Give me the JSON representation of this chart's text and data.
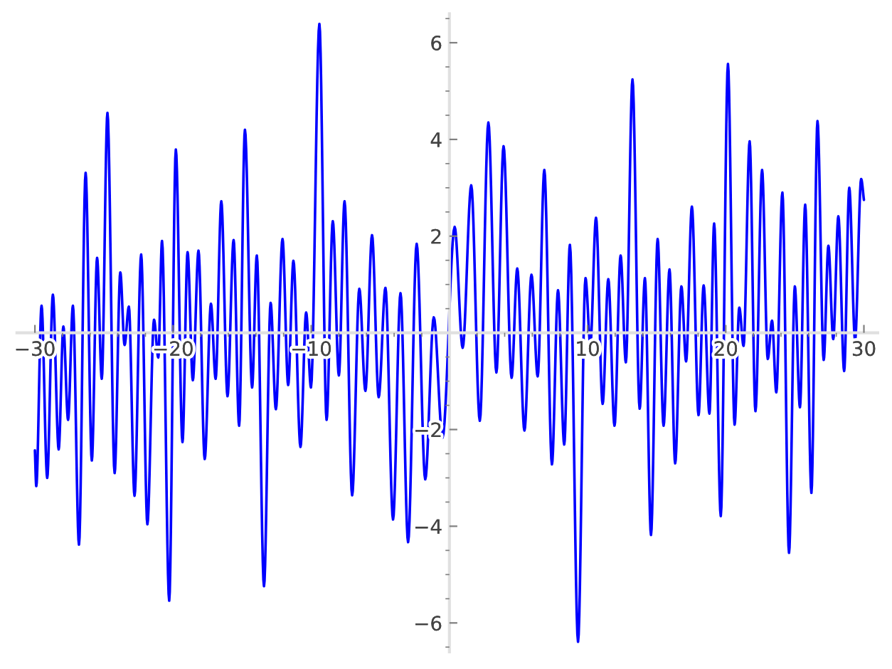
{
  "chart_data": {
    "type": "line",
    "x": [
      -30.0,
      -29.9,
      -29.52,
      -29.11,
      -28.7,
      -28.28,
      -27.94,
      -27.6,
      -27.25,
      -26.81,
      -26.33,
      -25.88,
      -25.5,
      -25.16,
      -24.75,
      -24.23,
      -23.82,
      -23.51,
      -23.2,
      -22.79,
      -22.31,
      -21.86,
      -21.38,
      -21.07,
      -20.8,
      -20.28,
      -19.8,
      -19.32,
      -18.95,
      -18.57,
      -18.16,
      -17.71,
      -17.26,
      -16.92,
      -16.51,
      -16.06,
      -15.62,
      -15.22,
      -14.8,
      -14.28,
      -13.94,
      -13.42,
      -12.94,
      -12.56,
      -12.08,
      -11.67,
      -11.29,
      -10.78,
      -10.37,
      -10.02,
      -9.41,
      -8.89,
      -8.44,
      -8.0,
      -7.59,
      -7.04,
      -6.52,
      -6.08,
      -5.6,
      -5.12,
      -4.63,
      -4.08,
      -3.54,
      -2.99,
      -2.37,
      -1.75,
      -1.13,
      -0.5,
      0.38,
      0.96,
      1.58,
      2.2,
      2.82,
      3.4,
      3.92,
      4.5,
      4.91,
      5.43,
      5.94,
      6.39,
      6.87,
      7.42,
      7.86,
      8.31,
      8.72,
      9.31,
      9.85,
      10.2,
      10.61,
      11.09,
      11.5,
      11.95,
      12.39,
      12.77,
      13.25,
      13.77,
      14.15,
      14.59,
      15.07,
      15.5,
      15.93,
      16.34,
      16.79,
      17.13,
      17.55,
      18.03,
      18.4,
      18.82,
      19.16,
      19.64,
      20.16,
      20.64,
      20.98,
      21.29,
      21.73,
      22.15,
      22.63,
      23.04,
      23.35,
      23.66,
      24.1,
      24.58,
      25.0,
      25.37,
      25.75,
      26.2,
      26.64,
      27.09,
      27.43,
      27.78,
      28.15,
      28.57,
      28.94,
      29.36,
      29.8,
      30.0
    ],
    "values": [
      -2.43,
      -3.17,
      0.56,
      -3.0,
      0.79,
      -2.41,
      0.13,
      -1.8,
      0.56,
      -4.38,
      3.31,
      -2.64,
      1.55,
      -0.95,
      4.55,
      -2.9,
      1.25,
      -0.25,
      0.54,
      -3.37,
      1.62,
      -3.96,
      0.27,
      -0.51,
      1.9,
      -5.54,
      3.79,
      -2.26,
      1.67,
      -0.98,
      1.7,
      -2.61,
      0.6,
      -0.95,
      2.72,
      -1.31,
      1.92,
      -1.92,
      4.2,
      -1.13,
      1.6,
      -5.24,
      0.62,
      -1.58,
      1.94,
      -1.08,
      1.49,
      -2.36,
      0.42,
      -1.13,
      6.39,
      -1.8,
      2.31,
      -0.88,
      2.72,
      -3.36,
      0.91,
      -1.2,
      2.02,
      -1.33,
      0.93,
      -3.86,
      0.82,
      -4.33,
      1.84,
      -3.03,
      0.32,
      -2.17,
      2.19,
      -0.31,
      3.05,
      -1.82,
      4.35,
      -0.82,
      3.86,
      -0.93,
      1.33,
      -2.02,
      1.2,
      -0.9,
      3.37,
      -2.72,
      0.88,
      -2.31,
      1.82,
      -6.39,
      1.13,
      -0.25,
      2.38,
      -1.47,
      1.11,
      -1.92,
      1.6,
      -0.61,
      5.24,
      -1.57,
      1.13,
      -4.18,
      1.94,
      -1.92,
      1.31,
      -2.7,
      0.96,
      -0.59,
      2.61,
      -1.7,
      0.98,
      -1.67,
      2.26,
      -3.79,
      5.56,
      -1.9,
      0.52,
      -0.27,
      3.96,
      -1.62,
      3.37,
      -0.54,
      0.25,
      -1.23,
      2.9,
      -4.55,
      0.96,
      -1.54,
      2.65,
      -3.31,
      4.38,
      -0.56,
      1.8,
      -0.13,
      2.41,
      -0.79,
      3.0,
      -0.15,
      3.18,
      2.75
    ],
    "color": "#0000ff",
    "xlim": [
      -31.3,
      31.0
    ],
    "ylim": [
      -6.6,
      6.6
    ],
    "xticks": [
      -30,
      -20,
      -10,
      10,
      20,
      30,
      {
        "value": -28,
        "label": null
      },
      {
        "value": -26,
        "label": null
      },
      {
        "value": -24,
        "label": null
      },
      {
        "value": -22,
        "label": null
      },
      {
        "value": -18,
        "label": null
      },
      {
        "value": -16,
        "label": null
      },
      {
        "value": -14,
        "label": null
      },
      {
        "value": -12,
        "label": null
      },
      {
        "value": -8,
        "label": null
      },
      {
        "value": -6,
        "label": null
      },
      {
        "value": -4,
        "label": null
      },
      {
        "value": -2,
        "label": null
      },
      {
        "value": 2,
        "label": null
      },
      {
        "value": 4,
        "label": null
      },
      {
        "value": 6,
        "label": null
      },
      {
        "value": 8,
        "label": null
      },
      {
        "value": 12,
        "label": null
      },
      {
        "value": 14,
        "label": null
      },
      {
        "value": 16,
        "label": null
      },
      {
        "value": 18,
        "label": null
      },
      {
        "value": 22,
        "label": null
      },
      {
        "value": 24,
        "label": null
      },
      {
        "value": 26,
        "label": null
      },
      {
        "value": 28,
        "label": null
      }
    ],
    "yticks": [
      -6,
      -4,
      -2,
      2,
      4,
      6,
      {
        "value": -6.5,
        "label": null
      },
      {
        "value": -5.5,
        "label": null
      },
      {
        "value": -5,
        "label": null
      },
      {
        "value": -4.5,
        "label": null
      },
      {
        "value": -3.5,
        "label": null
      },
      {
        "value": -3,
        "label": null
      },
      {
        "value": -2.5,
        "label": null
      },
      {
        "value": -1.5,
        "label": null
      },
      {
        "value": -1,
        "label": null
      },
      {
        "value": -0.5,
        "label": null
      },
      {
        "value": 0.5,
        "label": null
      },
      {
        "value": 1,
        "label": null
      },
      {
        "value": 1.5,
        "label": null
      },
      {
        "value": 2.5,
        "label": null
      },
      {
        "value": 3,
        "label": null
      },
      {
        "value": 3.5,
        "label": null
      },
      {
        "value": 4.5,
        "label": null
      },
      {
        "value": 5,
        "label": null
      },
      {
        "value": 5.5,
        "label": null
      },
      {
        "value": 6.5,
        "label": null
      }
    ]
  }
}
